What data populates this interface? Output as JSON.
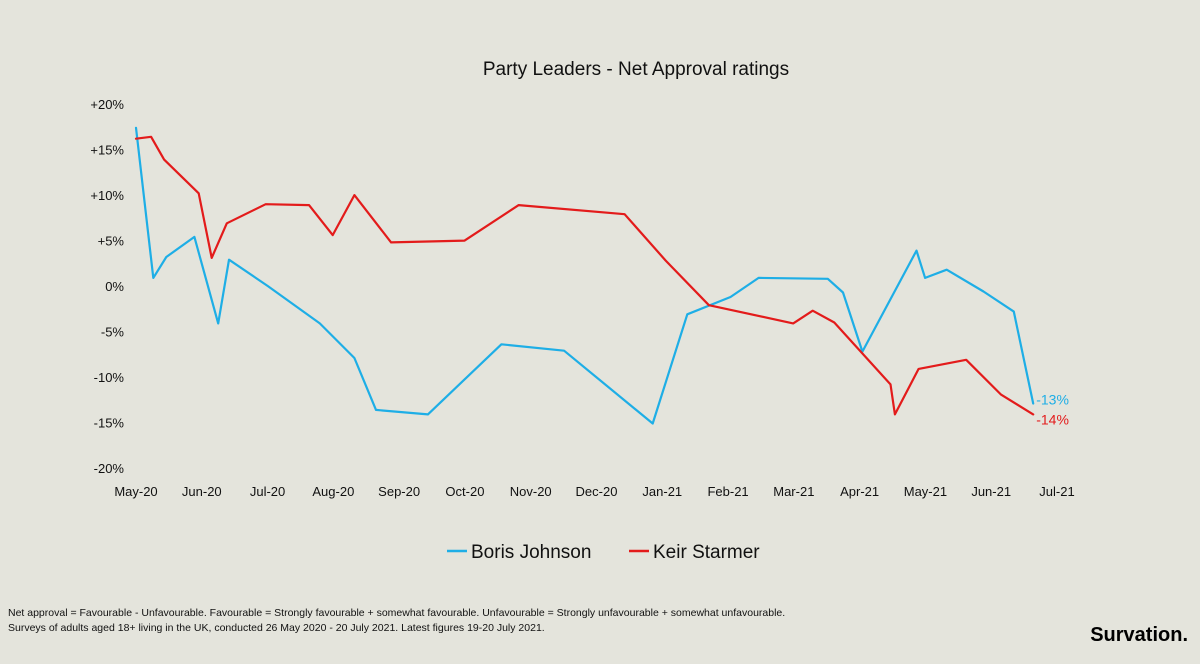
{
  "chart_data": {
    "type": "line",
    "title": "Party Leaders - Net Approval ratings",
    "xlabel": "",
    "ylabel": "",
    "x_ticks": [
      "May-20",
      "Jun-20",
      "Jul-20",
      "Aug-20",
      "Sep-20",
      "Oct-20",
      "Nov-20",
      "Dec-20",
      "Jan-21",
      "Feb-21",
      "Mar-21",
      "Apr-21",
      "May-21",
      "Jun-21",
      "Jul-21"
    ],
    "y_ticks": [
      "+20%",
      "+15%",
      "+10%",
      "+5%",
      "0%",
      "-5%",
      "-10%",
      "-15%",
      "-20%"
    ],
    "ylim": [
      -20,
      20
    ],
    "xlim": [
      "2020-05-01",
      "2021-07-01"
    ],
    "grid": false,
    "legend": "bottom",
    "series": [
      {
        "name": "Boris Johnson",
        "color": "#1eaee6",
        "end_label": "-13%",
        "points": [
          [
            "2020-05-01",
            17.5
          ],
          [
            "2020-05-09",
            1.0
          ],
          [
            "2020-05-15",
            3.3
          ],
          [
            "2020-05-28",
            5.5
          ],
          [
            "2020-06-08",
            -4.0
          ],
          [
            "2020-06-13",
            3.0
          ],
          [
            "2020-07-01",
            0.1
          ],
          [
            "2020-07-25",
            -4.0
          ],
          [
            "2020-08-10",
            -7.8
          ],
          [
            "2020-08-20",
            -13.5
          ],
          [
            "2020-09-13",
            -14.0
          ],
          [
            "2020-10-17",
            -6.3
          ],
          [
            "2020-11-15",
            -7.0
          ],
          [
            "2020-12-26",
            -15.0
          ],
          [
            "2021-01-11",
            -3.0
          ],
          [
            "2021-01-31",
            -1.1
          ],
          [
            "2021-02-13",
            1.0
          ],
          [
            "2021-03-17",
            0.9
          ],
          [
            "2021-03-24",
            -0.6
          ],
          [
            "2021-04-02",
            -7.1
          ],
          [
            "2021-04-27",
            4.0
          ],
          [
            "2021-05-01",
            1.0
          ],
          [
            "2021-05-11",
            1.9
          ],
          [
            "2021-05-28",
            -0.5
          ],
          [
            "2021-06-11",
            -2.7
          ],
          [
            "2021-06-20",
            -12.8
          ]
        ]
      },
      {
        "name": "Keir Starmer",
        "color": "#e31b1b",
        "end_label": "-14%",
        "points": [
          [
            "2020-05-01",
            16.3
          ],
          [
            "2020-05-08",
            16.5
          ],
          [
            "2020-05-14",
            14.0
          ],
          [
            "2020-05-30",
            10.3
          ],
          [
            "2020-06-05",
            3.2
          ],
          [
            "2020-06-12",
            7.0
          ],
          [
            "2020-06-30",
            9.1
          ],
          [
            "2020-07-20",
            9.0
          ],
          [
            "2020-07-31",
            5.7
          ],
          [
            "2020-08-10",
            10.1
          ],
          [
            "2020-08-27",
            4.9
          ],
          [
            "2020-09-30",
            5.1
          ],
          [
            "2020-10-25",
            9.0
          ],
          [
            "2020-12-13",
            8.0
          ],
          [
            "2021-01-01",
            2.9
          ],
          [
            "2021-01-21",
            -2.0
          ],
          [
            "2021-03-01",
            -4.0
          ],
          [
            "2021-03-10",
            -2.6
          ],
          [
            "2021-03-20",
            -3.9
          ],
          [
            "2021-04-15",
            -10.7
          ],
          [
            "2021-04-17",
            -14.0
          ],
          [
            "2021-04-28",
            -9.0
          ],
          [
            "2021-05-20",
            -8.0
          ],
          [
            "2021-06-05",
            -11.8
          ],
          [
            "2021-06-20",
            -14.0
          ]
        ]
      }
    ]
  },
  "footnotes": {
    "line1": "Net approval = Favourable - Unfavourable. Favourable = Strongly favourable + somewhat favourable. Unfavourable = Strongly unfavourable + somewhat unfavourable.",
    "line2": "Surveys of adults aged 18+ living in the UK, conducted 26 May 2020 - 20 July 2021.  Latest figures 19-20 July 2021."
  },
  "brand": "Survation."
}
